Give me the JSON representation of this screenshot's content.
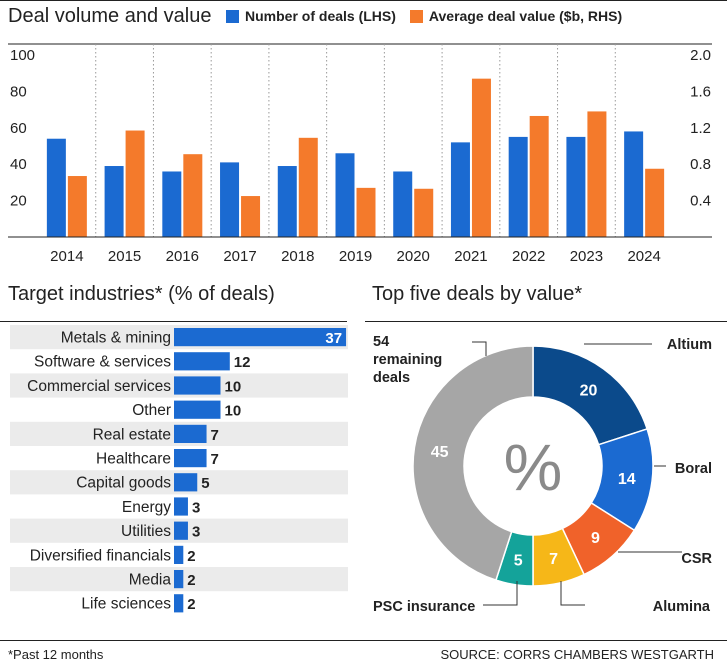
{
  "colors": {
    "blue": "#1b6ad1",
    "orange": "#f47a2b",
    "row_shade": "#ebebeb",
    "grid": "#999999",
    "gray": "#a6a6a6",
    "navy": "#0b4a8b",
    "teal": "#14a39a",
    "yellow": "#f6b718",
    "red_orange": "#f0622a"
  },
  "bar_chart_title": "Deal volume and value",
  "legend": {
    "deals": "Number of deals (LHS)",
    "value": "Average deal value ($b, RHS)"
  },
  "industry_title": "Target industries* (% of deals)",
  "pie_title": "Top five deals by value*",
  "footnote": "*Past 12 months",
  "source": "SOURCE: CORRS CHAMBERS WESTGARTH",
  "chart_data": [
    {
      "type": "bar",
      "title": "Deal volume and value",
      "categories": [
        "2014",
        "2015",
        "2016",
        "2017",
        "2018",
        "2019",
        "2020",
        "2021",
        "2022",
        "2023",
        "2024"
      ],
      "series": [
        {
          "name": "Number of deals (LHS)",
          "axis": "left",
          "values": [
            54,
            39,
            36,
            41,
            39,
            46,
            36,
            52,
            55,
            55,
            58
          ]
        },
        {
          "name": "Average deal value ($b, RHS)",
          "axis": "right",
          "values": [
            0.67,
            1.17,
            0.91,
            0.45,
            1.09,
            0.54,
            0.53,
            1.74,
            1.33,
            1.38,
            0.75
          ]
        }
      ],
      "y_left": {
        "ticks": [
          "100",
          "80",
          "60",
          "40",
          "20"
        ],
        "ylim": [
          0,
          100
        ]
      },
      "y_right": {
        "ticks": [
          "2.0",
          "1.6",
          "1.2",
          "0.8",
          "0.4"
        ],
        "ylim": [
          0,
          2.0
        ]
      },
      "grid": "vertical dotted"
    },
    {
      "type": "bar",
      "orientation": "horizontal",
      "title": "Target industries* (% of deals)",
      "categories": [
        "Metals & mining",
        "Software & services",
        "Commercial services",
        "Other",
        "Real estate",
        "Healthcare",
        "Capital goods",
        "Energy",
        "Utilities",
        "Diversified financials",
        "Media",
        "Life sciences"
      ],
      "values": [
        37,
        12,
        10,
        10,
        7,
        7,
        5,
        3,
        3,
        2,
        2,
        2
      ],
      "labels": [
        "37",
        "12",
        "10",
        "10",
        "7",
        "7",
        "5",
        "3",
        "3",
        "2",
        "2",
        "2"
      ]
    },
    {
      "type": "pie",
      "style": "donut",
      "title": "Top five deals by value*",
      "center_label": "%",
      "slices": [
        {
          "label": "Altium",
          "value": 20,
          "value_label": "20",
          "color": "#0b4a8b"
        },
        {
          "label": "Boral",
          "value": 14,
          "value_label": "14",
          "color": "#1b6ad1"
        },
        {
          "label": "CSR",
          "value": 9,
          "value_label": "9",
          "color": "#f0622a"
        },
        {
          "label": "Alumina",
          "value": 7,
          "value_label": "7",
          "color": "#f6b718"
        },
        {
          "label": "PSC insurance",
          "value": 5,
          "value_label": "5",
          "color": "#14a39a"
        },
        {
          "label": "54 remaining deals",
          "label_lines": [
            "54",
            "remaining",
            "deals"
          ],
          "value": 45,
          "value_label": "45",
          "color": "#a6a6a6"
        }
      ]
    }
  ]
}
